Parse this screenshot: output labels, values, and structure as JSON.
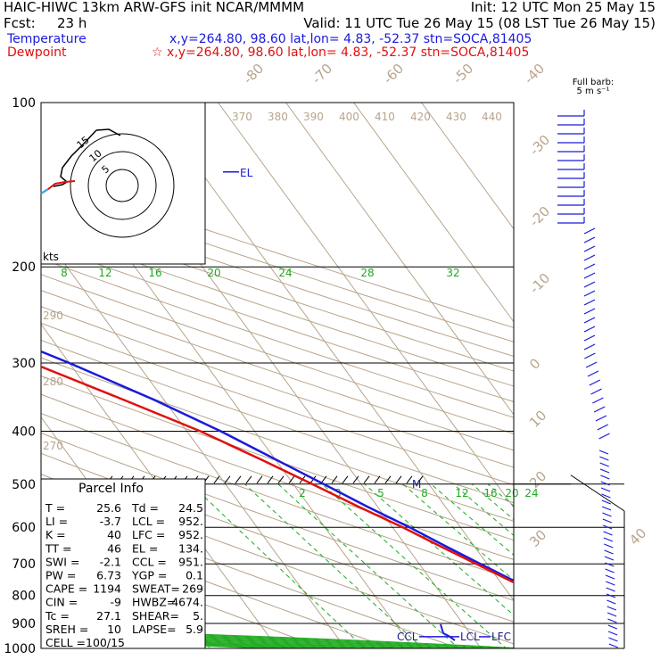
{
  "header": {
    "model": "HAIC-HIWC 13km ARW-GFS init   NCAR/MMMM",
    "init": "Init: 12 UTC Mon 25 May 15",
    "fcst_label": "Fcst:",
    "fcst_value": "23 h",
    "valid": "Valid: 11 UTC Tue 26 May 15 (08 LST Tue 26 May 15)",
    "temp_label": "Temperature",
    "temp_info": "x,y=264.80, 98.60    lat,lon=  4.83, -52.37   stn=SOCA,81405",
    "dew_label": "Dewpoint",
    "dew_info": "☆ x,y=264.80, 98.60    lat,lon=  4.83, -52.37   stn=SOCA,81405"
  },
  "barb_legend": {
    "line1": "Full barb:",
    "line2": "5 m s⁻¹"
  },
  "hodograph": {
    "unit": "kts",
    "ring_labels": [
      "5",
      "10",
      "15"
    ]
  },
  "markers": {
    "el": "EL",
    "ccl": "CCL",
    "lcl": "LCL",
    "lfc": "LFC",
    "m": "M"
  },
  "parcel": {
    "title": "Parcel Info",
    "rows": [
      [
        "T   =",
        "25.6",
        "Td =",
        "24.5"
      ],
      [
        "LI  =",
        "-3.7",
        "LCL =",
        "952."
      ],
      [
        "K   =",
        "40",
        "LFC =",
        "952."
      ],
      [
        "TT  =",
        "46",
        "EL  =",
        "134."
      ],
      [
        "SWI =",
        "-2.1",
        "CCL =",
        "951."
      ],
      [
        "PW  =",
        "6.73",
        "YGP =",
        "0.1"
      ],
      [
        "CAPE =",
        "1194",
        "SWEAT=",
        "269"
      ],
      [
        "CIN  =",
        "-9",
        "HWBZ=",
        "4674."
      ],
      [
        "Tc  =",
        "27.1",
        "SHEAR=",
        "5."
      ],
      [
        "SREH =",
        "10",
        "LAPSE=",
        "5.9"
      ],
      [
        "CELL =",
        "100/15",
        "",
        ""
      ]
    ]
  },
  "chart_data": {
    "type": "line",
    "ylabel": "",
    "xlabel": "",
    "y_axis_scale": "log-pressure",
    "pressure_levels": [
      100,
      200,
      300,
      400,
      500,
      600,
      700,
      800,
      900,
      1000
    ],
    "pressure_tick_labels": [
      "100",
      "200",
      "300",
      "400",
      "500",
      "600",
      "700",
      "800",
      "900",
      "1000"
    ],
    "isotherm_labels": [
      "-80",
      "-70",
      "-60",
      "-50",
      "-40",
      "-30",
      "-20",
      "-10",
      "0",
      "10",
      "20",
      "30",
      "40"
    ],
    "theta_labels": [
      "370",
      "380",
      "390",
      "400",
      "410",
      "420",
      "430",
      "440"
    ],
    "theta_side_labels": [
      "290",
      "280",
      "270"
    ],
    "mixing_ratio_labels_upper": [
      "8",
      "12",
      "16",
      "20",
      "24",
      "28",
      "32"
    ],
    "mixing_ratio_labels_lower": [
      "2",
      "3",
      "5",
      "8",
      "12",
      "16",
      "20",
      "24"
    ],
    "colors": {
      "temperature": "#1a1adb",
      "dewpoint": "#e01010",
      "isobar": "#000000",
      "isotherm": "#b8a48c",
      "adiabat": "#b8a48c",
      "moist_adiabat": "#1faa1f",
      "mixing_ratio": "#1faa1f",
      "barb": "#1a1adb"
    },
    "series": [
      {
        "name": "Temperature",
        "p": [
          1000,
          975,
          950,
          925,
          900,
          850,
          800,
          750,
          700,
          650,
          600,
          550,
          500,
          450,
          400,
          350,
          300,
          250,
          200,
          175,
          150,
          125,
          100
        ],
        "t": [
          25.6,
          24.3,
          22.5,
          21.0,
          19.8,
          17.5,
          15.0,
          12.0,
          9.0,
          5.8,
          2.5,
          -1.5,
          -5.5,
          -10.0,
          -15.0,
          -21.5,
          -30.0,
          -41.0,
          -55.5,
          -63.0,
          -71.0,
          -78.5,
          -84.0
        ]
      },
      {
        "name": "Dewpoint",
        "p": [
          1000,
          975,
          950,
          925,
          900,
          850,
          800,
          750,
          700,
          650,
          600,
          550,
          500,
          450,
          400,
          350,
          300,
          250,
          200,
          175,
          150,
          125,
          100
        ],
        "t": [
          24.5,
          23.0,
          21.8,
          20.7,
          19.5,
          17.0,
          14.5,
          11.5,
          8.4,
          5.0,
          1.5,
          -2.8,
          -7.2,
          -12.2,
          -18.0,
          -26.0,
          -35.5,
          -47.0,
          -62.0,
          -70.0,
          -78.0,
          -82.0,
          -84.5
        ]
      }
    ]
  }
}
